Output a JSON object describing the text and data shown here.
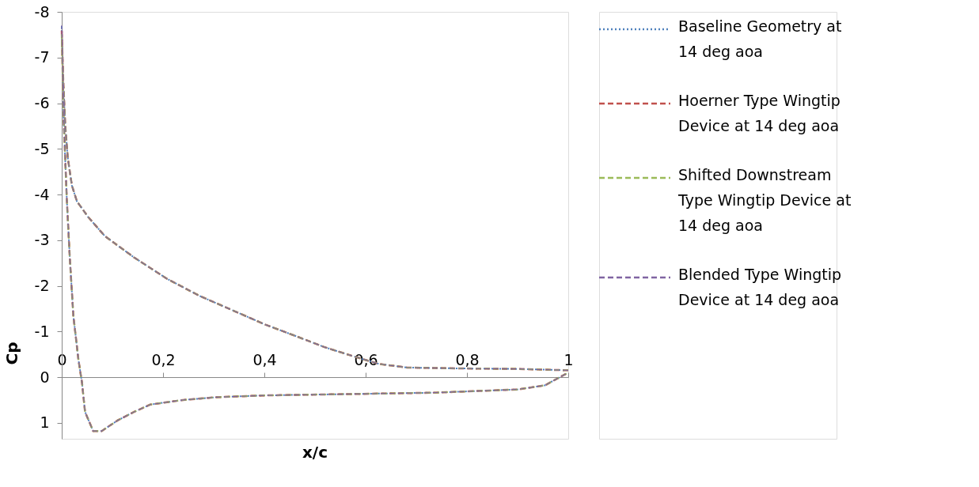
{
  "chart_data": {
    "type": "line",
    "xlabel": "x/c",
    "ylabel": "Cp",
    "xlim": [
      0,
      1
    ],
    "ylim": [
      1.35,
      -8
    ],
    "xticks": [
      0,
      {
        "value": 0.2,
        "label": "0,2"
      },
      {
        "value": 0.4,
        "label": "0,4"
      },
      {
        "value": 0.6,
        "label": "0,6"
      },
      {
        "value": 0.8,
        "label": "0,8"
      },
      1
    ],
    "yticks": [
      -8,
      -7,
      -6,
      -5,
      -4,
      -3,
      -2,
      -1,
      0,
      1
    ],
    "grid": false,
    "legend": "right",
    "marker": "none",
    "series": [
      {
        "name": "Baseline Geometry  at 14 deg aoa",
        "color": "#4f81bd",
        "line_style": "dotted",
        "x": [
          1.0,
          0.9,
          0.79,
          0.682,
          0.626,
          0.572,
          0.518,
          0.462,
          0.402,
          0.336,
          0.272,
          0.207,
          0.143,
          0.085,
          0.052,
          0.03,
          0.02,
          0.012,
          0.007,
          0.003,
          0.0,
          0.004,
          0.01,
          0.016,
          0.023,
          0.033,
          0.04,
          0.046,
          0.062,
          0.079,
          0.11,
          0.143,
          0.175,
          0.24,
          0.305,
          0.4,
          0.572,
          0.736,
          0.9,
          0.954,
          1.0
        ],
        "values": [
          -0.15,
          -0.18,
          -0.19,
          -0.21,
          -0.29,
          -0.47,
          -0.66,
          -0.9,
          -1.15,
          -1.47,
          -1.78,
          -2.16,
          -2.62,
          -3.09,
          -3.51,
          -3.85,
          -4.2,
          -4.8,
          -5.5,
          -6.5,
          -7.7,
          -5.6,
          -3.9,
          -2.6,
          -1.34,
          -0.38,
          0.12,
          0.76,
          1.18,
          1.18,
          0.95,
          0.76,
          0.6,
          0.5,
          0.44,
          0.4,
          0.37,
          0.34,
          0.27,
          0.18,
          -0.1
        ]
      },
      {
        "name": "Hoerner Type Wingtip Device at 14 deg aoa",
        "color": "#c0504d",
        "line_style": "dashed",
        "x": [
          1.0,
          0.9,
          0.79,
          0.682,
          0.626,
          0.572,
          0.518,
          0.462,
          0.402,
          0.336,
          0.272,
          0.207,
          0.143,
          0.085,
          0.052,
          0.03,
          0.02,
          0.012,
          0.007,
          0.003,
          0.0,
          0.004,
          0.01,
          0.016,
          0.023,
          0.033,
          0.04,
          0.046,
          0.062,
          0.079,
          0.11,
          0.143,
          0.175,
          0.24,
          0.305,
          0.4,
          0.572,
          0.736,
          0.9,
          0.954,
          1.0
        ],
        "values": [
          -0.15,
          -0.18,
          -0.19,
          -0.21,
          -0.29,
          -0.47,
          -0.66,
          -0.9,
          -1.15,
          -1.47,
          -1.78,
          -2.16,
          -2.62,
          -3.09,
          -3.51,
          -3.85,
          -4.2,
          -4.8,
          -5.5,
          -6.5,
          -7.6,
          -5.6,
          -3.9,
          -2.6,
          -1.34,
          -0.38,
          0.12,
          0.76,
          1.18,
          1.18,
          0.95,
          0.76,
          0.6,
          0.5,
          0.44,
          0.4,
          0.37,
          0.34,
          0.27,
          0.18,
          -0.1
        ]
      },
      {
        "name": "Shifted Downstream Type Wingtip Device at 14 deg aoa",
        "color": "#9bbb59",
        "line_style": "dashed",
        "x": [
          1.0,
          0.9,
          0.79,
          0.682,
          0.626,
          0.572,
          0.518,
          0.462,
          0.402,
          0.336,
          0.272,
          0.207,
          0.143,
          0.085,
          0.052,
          0.03,
          0.02,
          0.012,
          0.007,
          0.003,
          0.0,
          0.004,
          0.01,
          0.016,
          0.023,
          0.033,
          0.04,
          0.046,
          0.062,
          0.079,
          0.11,
          0.143,
          0.175,
          0.24,
          0.305,
          0.4,
          0.572,
          0.736,
          0.9,
          0.954,
          1.0
        ],
        "values": [
          -0.15,
          -0.18,
          -0.19,
          -0.21,
          -0.29,
          -0.47,
          -0.66,
          -0.9,
          -1.15,
          -1.47,
          -1.78,
          -2.16,
          -2.62,
          -3.09,
          -3.51,
          -3.85,
          -4.2,
          -4.8,
          -5.5,
          -6.5,
          -7.5,
          -5.6,
          -3.9,
          -2.6,
          -1.34,
          -0.38,
          0.12,
          0.76,
          1.18,
          1.18,
          0.95,
          0.76,
          0.6,
          0.5,
          0.44,
          0.4,
          0.37,
          0.34,
          0.27,
          0.18,
          -0.1
        ]
      },
      {
        "name": "Blended Type Wingtip Device at 14 deg aoa",
        "color": "#8064a2",
        "line_style": "dashed",
        "x": [
          1.0,
          0.9,
          0.79,
          0.682,
          0.626,
          0.572,
          0.518,
          0.462,
          0.402,
          0.336,
          0.272,
          0.207,
          0.143,
          0.085,
          0.052,
          0.03,
          0.02,
          0.012,
          0.007,
          0.003,
          0.0,
          0.004,
          0.01,
          0.016,
          0.023,
          0.033,
          0.04,
          0.046,
          0.062,
          0.079,
          0.11,
          0.143,
          0.175,
          0.24,
          0.305,
          0.4,
          0.572,
          0.736,
          0.9,
          0.954,
          1.0
        ],
        "values": [
          -0.15,
          -0.18,
          -0.19,
          -0.21,
          -0.29,
          -0.47,
          -0.66,
          -0.9,
          -1.15,
          -1.47,
          -1.78,
          -2.16,
          -2.62,
          -3.09,
          -3.51,
          -3.85,
          -4.2,
          -4.8,
          -5.5,
          -6.5,
          -7.7,
          -5.6,
          -3.9,
          -2.6,
          -1.34,
          -0.38,
          0.12,
          0.76,
          1.18,
          1.18,
          0.95,
          0.76,
          0.6,
          0.5,
          0.44,
          0.4,
          0.37,
          0.34,
          0.27,
          0.18,
          -0.1
        ]
      }
    ]
  }
}
